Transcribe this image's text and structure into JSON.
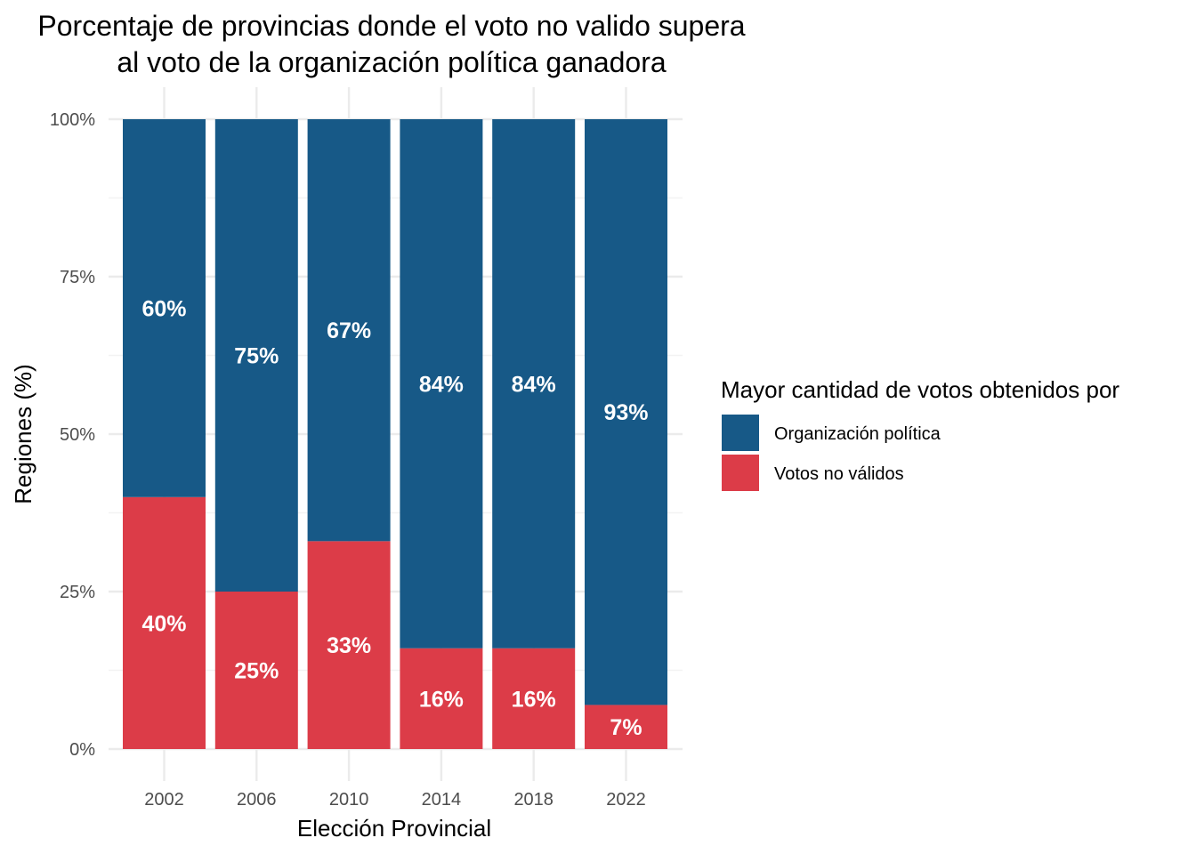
{
  "chart_data": {
    "type": "bar",
    "stacked": true,
    "title_line1": "Porcentaje de provincias donde el voto no valido supera",
    "title_line2": "al voto de la organización política ganadora",
    "xlabel": "Elección Provincial",
    "ylabel": "Regiones (%)",
    "categories": [
      "2002",
      "2006",
      "2010",
      "2014",
      "2018",
      "2022"
    ],
    "ylim": [
      0,
      100
    ],
    "yticks": [
      "0%",
      "25%",
      "50%",
      "75%",
      "100%"
    ],
    "series": [
      {
        "name": "Votos no válidos",
        "color": "#dc3c48",
        "values": [
          40,
          25,
          33,
          16,
          16,
          7
        ],
        "labels": [
          "40%",
          "25%",
          "33%",
          "16%",
          "16%",
          "7%"
        ]
      },
      {
        "name": "Organización política",
        "color": "#175987",
        "values": [
          60,
          75,
          67,
          84,
          84,
          93
        ],
        "labels": [
          "60%",
          "75%",
          "67%",
          "84%",
          "84%",
          "93%"
        ]
      }
    ],
    "legend": {
      "title": "Mayor cantidad de votos obtenidos por",
      "position": "right",
      "entries": [
        {
          "label": "Organización política",
          "color": "#175987"
        },
        {
          "label": "Votos no válidos",
          "color": "#dc3c48"
        }
      ]
    },
    "grid": true
  }
}
